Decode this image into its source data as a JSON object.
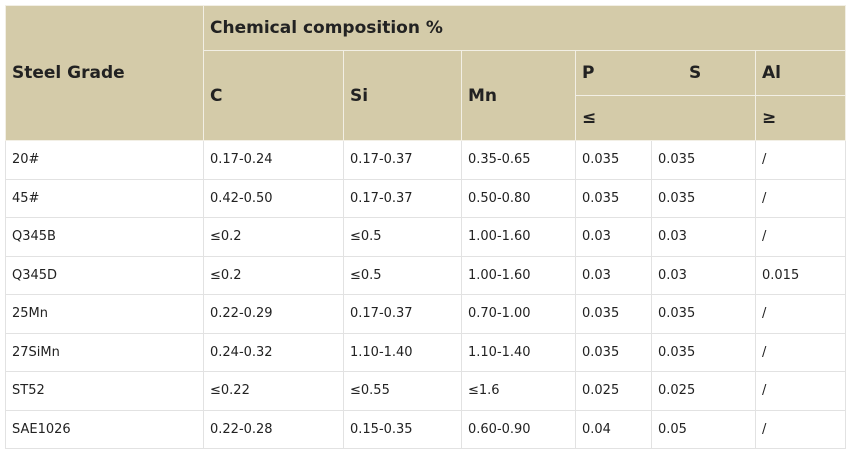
{
  "header": {
    "steel_grade": "Steel Grade",
    "group": "Chemical composition %",
    "columns": [
      "C",
      "Si",
      "Mn",
      "P",
      "S",
      "Al"
    ],
    "le": "≤",
    "ge": "≥"
  },
  "table": {
    "rows": [
      [
        "20#",
        "0.17-0.24",
        "0.17-0.37",
        "0.35-0.65",
        "0.035",
        "0.035",
        "/"
      ],
      [
        "45#",
        "0.42-0.50",
        "0.17-0.37",
        "0.50-0.80",
        "0.035",
        "0.035",
        "/"
      ],
      [
        "Q345B",
        "≤0.2",
        "≤0.5",
        "1.00-1.60",
        "0.03",
        "0.03",
        "/"
      ],
      [
        "Q345D",
        "≤0.2",
        "≤0.5",
        "1.00-1.60",
        "0.03",
        "0.03",
        "0.015"
      ],
      [
        "25Mn",
        "0.22-0.29",
        "0.17-0.37",
        "0.70-1.00",
        "0.035",
        "0.035",
        "/"
      ],
      [
        "27SiMn",
        "0.24-0.32",
        "1.10-1.40",
        "1.10-1.40",
        "0.035",
        "0.035",
        "/"
      ],
      [
        "ST52",
        "≤0.22",
        "≤0.55",
        "≤1.6",
        "0.025",
        "0.025",
        "/"
      ],
      [
        "SAE1026",
        "0.22-0.28",
        "0.15-0.35",
        "0.60-0.90",
        "0.04",
        "0.05",
        "/"
      ]
    ]
  }
}
